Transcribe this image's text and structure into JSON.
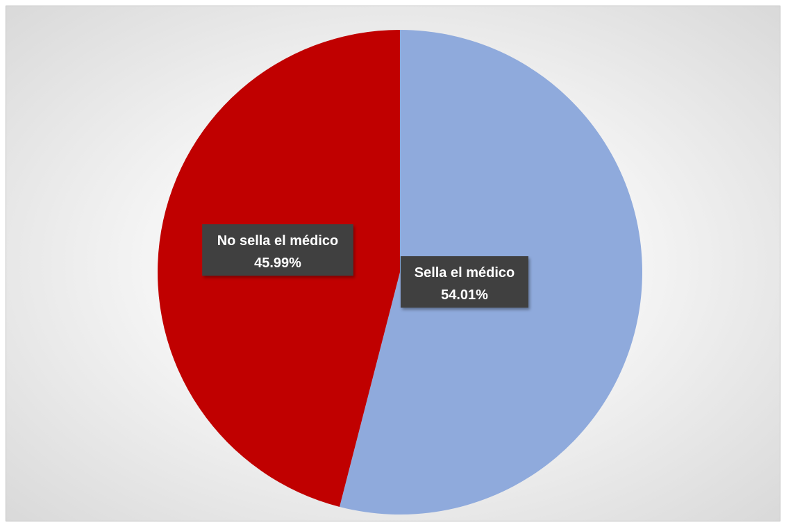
{
  "chart_data": {
    "type": "pie",
    "title": "",
    "slices": [
      {
        "label": "Sella el médico",
        "value": 54.01,
        "value_label": "54.01%",
        "color": "#8faadc"
      },
      {
        "label": "No sella el médico",
        "value": 45.99,
        "value_label": "45.99%",
        "color": "#c00000"
      }
    ],
    "start_angle_deg": 0,
    "direction": "clockwise",
    "legend": "none",
    "data_labels": "inside, boxed"
  }
}
